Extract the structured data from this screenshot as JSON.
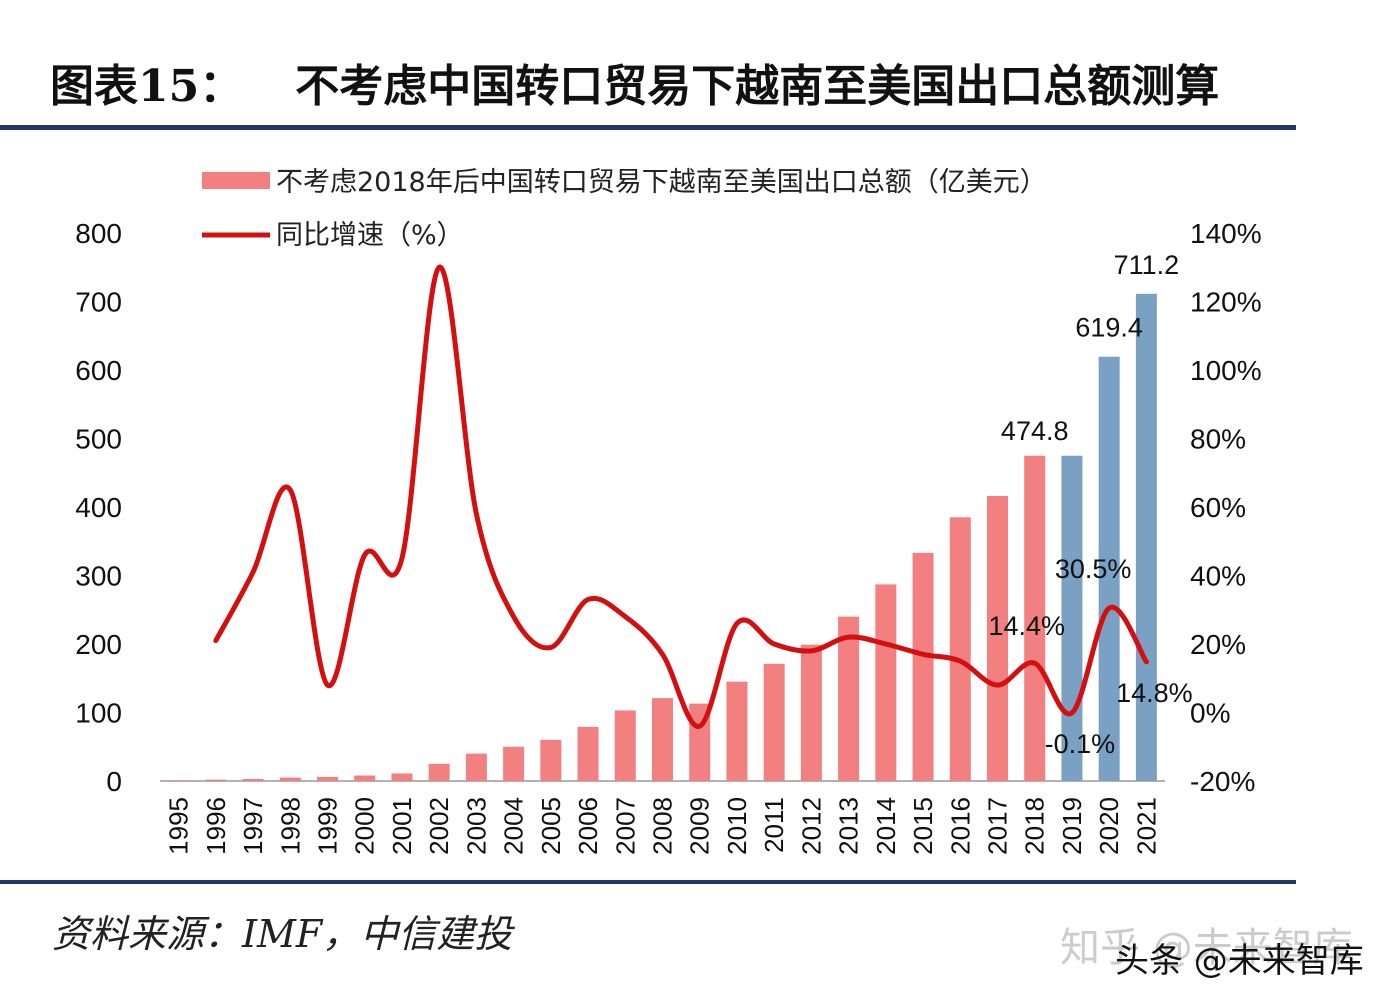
{
  "title": {
    "prefix": "图表15：",
    "text": "不考虑中国转口贸易下越南至美国出口总额测算"
  },
  "source": "资料来源：IMF，中信建投",
  "watermark": {
    "line1": "知乎 @未来智库",
    "line2": "头条 @未来智库"
  },
  "colors": {
    "bar_actual": "#f28080",
    "bar_forecast": "#7aa1c4",
    "line": "#d40f0f",
    "rule": "#1f3864"
  },
  "chart_data": {
    "type": "bar",
    "title": "",
    "categories": [
      "1995",
      "1996",
      "1997",
      "1998",
      "1999",
      "2000",
      "2001",
      "2002",
      "2003",
      "2004",
      "2005",
      "2006",
      "2007",
      "2008",
      "2009",
      "2010",
      "2011",
      "2012",
      "2013",
      "2014",
      "2015",
      "2016",
      "2017",
      "2018",
      "2019",
      "2020",
      "2021"
    ],
    "series": [
      {
        "name": "不考虑2018年后中国转口贸易下越南至美国出口总额（亿美元）",
        "axis": "left",
        "values": [
          1,
          2,
          3,
          5,
          6,
          8,
          11,
          25,
          40,
          50,
          60,
          79,
          103,
          121,
          113,
          145,
          171,
          199,
          240,
          287,
          333,
          385,
          416,
          474.8,
          474.8,
          619.4,
          711.2
        ],
        "forecast_from": "2019"
      },
      {
        "name": "同比增速（%）",
        "type": "line",
        "axis": "right",
        "x": [
          "1996",
          "1997",
          "1998",
          "1999",
          "2000",
          "2001",
          "2002",
          "2003",
          "2004",
          "2005",
          "2006",
          "2007",
          "2008",
          "2009",
          "2010",
          "2011",
          "2012",
          "2013",
          "2014",
          "2015",
          "2016",
          "2017",
          "2018",
          "2019",
          "2020",
          "2021"
        ],
        "values": [
          21,
          41,
          65,
          8,
          46,
          45,
          130,
          58,
          28,
          19,
          33,
          28,
          17,
          -4,
          26,
          20,
          18,
          22,
          20,
          17,
          15,
          8,
          14.4,
          -0.1,
          30.5,
          14.8
        ]
      }
    ],
    "data_labels": [
      {
        "series": 0,
        "x": "2018",
        "text": "474.8"
      },
      {
        "series": 0,
        "x": "2020",
        "text": "619.4"
      },
      {
        "series": 0,
        "x": "2021",
        "text": "711.2"
      },
      {
        "series": 1,
        "x": "2018",
        "text": "14.4%"
      },
      {
        "series": 1,
        "x": "2019",
        "text": "-0.1%"
      },
      {
        "series": 1,
        "x": "2020",
        "text": "30.5%"
      },
      {
        "series": 1,
        "x": "2021",
        "text": "14.8%"
      }
    ],
    "left_axis": {
      "ylim": [
        0,
        800
      ],
      "ticks": [
        "0",
        "100",
        "200",
        "300",
        "400",
        "500",
        "600",
        "700",
        "800"
      ]
    },
    "right_axis": {
      "ylim": [
        -20,
        140
      ],
      "ticks": [
        "-20%",
        "0%",
        "20%",
        "40%",
        "60%",
        "80%",
        "100%",
        "120%",
        "140%"
      ]
    },
    "legend": "top",
    "grid": false
  }
}
